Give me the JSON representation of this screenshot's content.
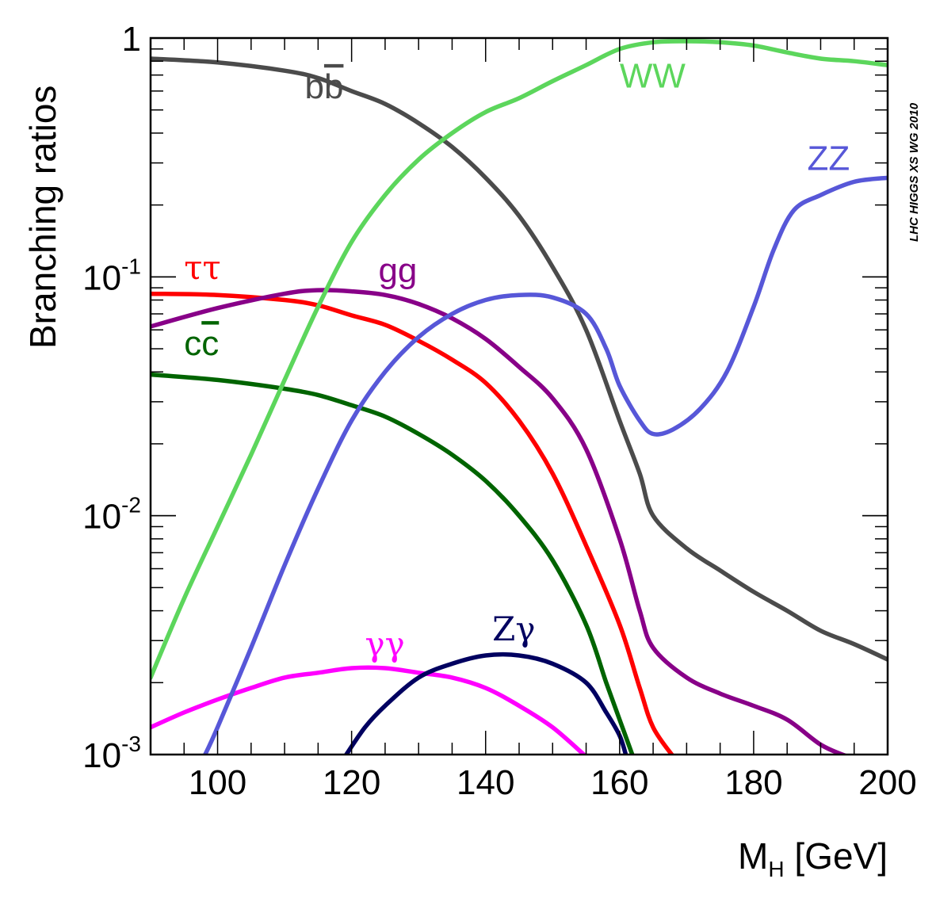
{
  "chart_data": {
    "type": "line",
    "xlabel": "M",
    "xlabel_sub": "H",
    "xlabel_unit": " [GeV]",
    "ylabel": "Branching ratios",
    "watermark": "LHC HIGGS XS WG 2010",
    "y_scale": "log",
    "xlim": [
      90,
      200
    ],
    "ylim": [
      0.001,
      1
    ],
    "x_ticks": [
      100,
      120,
      140,
      160,
      180,
      200
    ],
    "x_tick_labels": [
      "100",
      "120",
      "140",
      "160",
      "180",
      "200"
    ],
    "y_ticks": [
      {
        "value": 1,
        "base": "1",
        "exp": ""
      },
      {
        "value": 0.1,
        "base": "10",
        "exp": "-1"
      },
      {
        "value": 0.01,
        "base": "10",
        "exp": "-2"
      },
      {
        "value": 0.001,
        "base": "10",
        "exp": "-3"
      }
    ],
    "grid": false,
    "series": [
      {
        "key": "bb",
        "name": "bb",
        "color": "#4b4b4b",
        "points": [
          [
            90,
            0.82
          ],
          [
            100,
            0.79
          ],
          [
            110,
            0.73
          ],
          [
            115,
            0.68
          ],
          [
            120,
            0.6
          ],
          [
            125,
            0.53
          ],
          [
            130,
            0.44
          ],
          [
            135,
            0.35
          ],
          [
            140,
            0.26
          ],
          [
            145,
            0.18
          ],
          [
            150,
            0.11
          ],
          [
            155,
            0.06
          ],
          [
            160,
            0.025
          ],
          [
            163,
            0.015
          ],
          [
            165,
            0.01
          ],
          [
            170,
            0.0073
          ],
          [
            175,
            0.0059
          ],
          [
            180,
            0.0048
          ],
          [
            185,
            0.004
          ],
          [
            190,
            0.0033
          ],
          [
            195,
            0.0029
          ],
          [
            200,
            0.0025
          ]
        ]
      },
      {
        "key": "tautau",
        "name": "ττ",
        "color": "#ff0000",
        "points": [
          [
            90,
            0.085
          ],
          [
            100,
            0.084
          ],
          [
            110,
            0.08
          ],
          [
            115,
            0.076
          ],
          [
            120,
            0.069
          ],
          [
            125,
            0.063
          ],
          [
            130,
            0.054
          ],
          [
            135,
            0.045
          ],
          [
            140,
            0.036
          ],
          [
            145,
            0.025
          ],
          [
            150,
            0.015
          ],
          [
            155,
            0.0075
          ],
          [
            160,
            0.0035
          ],
          [
            163,
            0.0019
          ],
          [
            165,
            0.0013
          ],
          [
            168,
            0.00098
          ]
        ]
      },
      {
        "key": "cc",
        "name": "cc",
        "color": "#006400",
        "points": [
          [
            90,
            0.039
          ],
          [
            100,
            0.037
          ],
          [
            110,
            0.034
          ],
          [
            115,
            0.032
          ],
          [
            120,
            0.029
          ],
          [
            125,
            0.026
          ],
          [
            130,
            0.022
          ],
          [
            135,
            0.018
          ],
          [
            140,
            0.014
          ],
          [
            145,
            0.01
          ],
          [
            150,
            0.0065
          ],
          [
            155,
            0.0035
          ],
          [
            158,
            0.002
          ],
          [
            160,
            0.0014
          ],
          [
            162,
            0.00098
          ]
        ]
      },
      {
        "key": "gg",
        "name": "gg",
        "color": "#880088",
        "points": [
          [
            90,
            0.062
          ],
          [
            100,
            0.074
          ],
          [
            110,
            0.085
          ],
          [
            115,
            0.088
          ],
          [
            120,
            0.087
          ],
          [
            125,
            0.084
          ],
          [
            130,
            0.077
          ],
          [
            135,
            0.067
          ],
          [
            140,
            0.055
          ],
          [
            145,
            0.042
          ],
          [
            150,
            0.031
          ],
          [
            155,
            0.019
          ],
          [
            160,
            0.008
          ],
          [
            163,
            0.004
          ],
          [
            165,
            0.0028
          ],
          [
            170,
            0.0021
          ],
          [
            175,
            0.0018
          ],
          [
            180,
            0.0016
          ],
          [
            185,
            0.0014
          ],
          [
            190,
            0.0011
          ],
          [
            194,
            0.00098
          ]
        ]
      },
      {
        "key": "gammagamma",
        "name": "γγ",
        "color": "#ff00ff",
        "points": [
          [
            90,
            0.0013
          ],
          [
            95,
            0.0015
          ],
          [
            100,
            0.0017
          ],
          [
            105,
            0.0019
          ],
          [
            110,
            0.0021
          ],
          [
            115,
            0.0022
          ],
          [
            120,
            0.0023
          ],
          [
            125,
            0.0023
          ],
          [
            130,
            0.0022
          ],
          [
            135,
            0.0021
          ],
          [
            140,
            0.0019
          ],
          [
            145,
            0.0016
          ],
          [
            150,
            0.0013
          ],
          [
            155,
            0.00098
          ]
        ]
      },
      {
        "key": "zgamma",
        "name": "Zγ",
        "color": "#000060",
        "points": [
          [
            119,
            0.00098
          ],
          [
            122,
            0.0013
          ],
          [
            125,
            0.0016
          ],
          [
            130,
            0.0021
          ],
          [
            135,
            0.0024
          ],
          [
            140,
            0.0026
          ],
          [
            145,
            0.0026
          ],
          [
            150,
            0.0024
          ],
          [
            155,
            0.002
          ],
          [
            158,
            0.0015
          ],
          [
            160,
            0.0012
          ],
          [
            161,
            0.00098
          ]
        ]
      },
      {
        "key": "ww",
        "name": "WW",
        "color": "#5cd65c",
        "points": [
          [
            90,
            0.0021
          ],
          [
            95,
            0.0045
          ],
          [
            100,
            0.009
          ],
          [
            105,
            0.018
          ],
          [
            110,
            0.037
          ],
          [
            115,
            0.075
          ],
          [
            120,
            0.14
          ],
          [
            125,
            0.22
          ],
          [
            130,
            0.31
          ],
          [
            135,
            0.4
          ],
          [
            140,
            0.49
          ],
          [
            145,
            0.56
          ],
          [
            150,
            0.66
          ],
          [
            155,
            0.77
          ],
          [
            160,
            0.9
          ],
          [
            165,
            0.96
          ],
          [
            170,
            0.97
          ],
          [
            175,
            0.96
          ],
          [
            180,
            0.93
          ],
          [
            185,
            0.87
          ],
          [
            190,
            0.82
          ],
          [
            195,
            0.8
          ],
          [
            200,
            0.77
          ]
        ]
      },
      {
        "key": "zz",
        "name": "ZZ",
        "color": "#5757d8",
        "points": [
          [
            98,
            0.00098
          ],
          [
            100,
            0.0013
          ],
          [
            105,
            0.0028
          ],
          [
            110,
            0.0062
          ],
          [
            115,
            0.013
          ],
          [
            120,
            0.025
          ],
          [
            125,
            0.04
          ],
          [
            130,
            0.056
          ],
          [
            135,
            0.07
          ],
          [
            140,
            0.08
          ],
          [
            145,
            0.084
          ],
          [
            150,
            0.082
          ],
          [
            155,
            0.07
          ],
          [
            158,
            0.05
          ],
          [
            160,
            0.035
          ],
          [
            163,
            0.025
          ],
          [
            165,
            0.022
          ],
          [
            168,
            0.023
          ],
          [
            172,
            0.028
          ],
          [
            176,
            0.04
          ],
          [
            180,
            0.075
          ],
          [
            183,
            0.13
          ],
          [
            186,
            0.19
          ],
          [
            190,
            0.22
          ],
          [
            195,
            0.25
          ],
          [
            200,
            0.26
          ]
        ]
      }
    ],
    "labels": [
      {
        "series": "bb",
        "text": "b",
        "bar_text": "b",
        "x": 113,
        "y": 0.56
      },
      {
        "series": "ww",
        "text": "WW",
        "x": 160,
        "y": 0.62
      },
      {
        "series": "zz",
        "text": "ZZ",
        "x": 188,
        "y": 0.28
      },
      {
        "series": "tautau",
        "text": "ττ",
        "x": 95,
        "y": 0.098
      },
      {
        "series": "gg",
        "text": "gg",
        "x": 124,
        "y": 0.095
      },
      {
        "series": "cc",
        "text": "c",
        "bar_text": "c",
        "x": 95,
        "y": 0.047
      },
      {
        "series": "gammagamma",
        "text": "γγ",
        "x": 122,
        "y": 0.0026
      },
      {
        "series": "zgamma",
        "text": "Zγ",
        "x": 141,
        "y": 0.003
      }
    ]
  }
}
